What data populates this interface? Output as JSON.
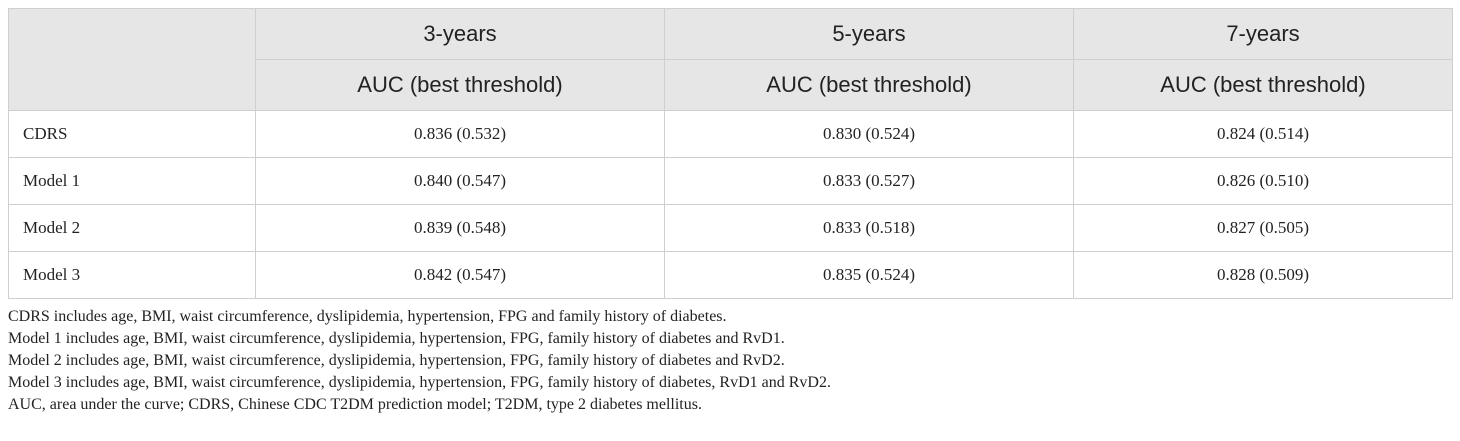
{
  "header": {
    "groups": [
      "3-years",
      "5-years",
      "7-years"
    ],
    "metric": "AUC (best threshold)"
  },
  "rows": [
    {
      "label": "CDRS",
      "values": [
        "0.836 (0.532)",
        "0.830 (0.524)",
        "0.824 (0.514)"
      ]
    },
    {
      "label": "Model 1",
      "values": [
        "0.840 (0.547)",
        "0.833 (0.527)",
        "0.826 (0.510)"
      ]
    },
    {
      "label": "Model 2",
      "values": [
        "0.839 (0.548)",
        "0.833 (0.518)",
        "0.827 (0.505)"
      ]
    },
    {
      "label": "Model 3",
      "values": [
        "0.842 (0.547)",
        "0.835 (0.524)",
        "0.828 (0.509)"
      ]
    }
  ],
  "notes": [
    "CDRS includes age, BMI, waist circumference, dyslipidemia, hypertension, FPG and family history of diabetes.",
    "Model 1 includes age, BMI, waist circumference, dyslipidemia, hypertension, FPG, family history of diabetes and RvD1.",
    "Model 2 includes age, BMI, waist circumference, dyslipidemia, hypertension, FPG, family history of diabetes and RvD2.",
    "Model 3 includes age, BMI, waist circumference, dyslipidemia, hypertension, FPG, family history of diabetes, RvD1 and RvD2.",
    "AUC, area under the curve; CDRS, Chinese CDC T2DM prediction model; T2DM, type 2 diabetes mellitus."
  ]
}
